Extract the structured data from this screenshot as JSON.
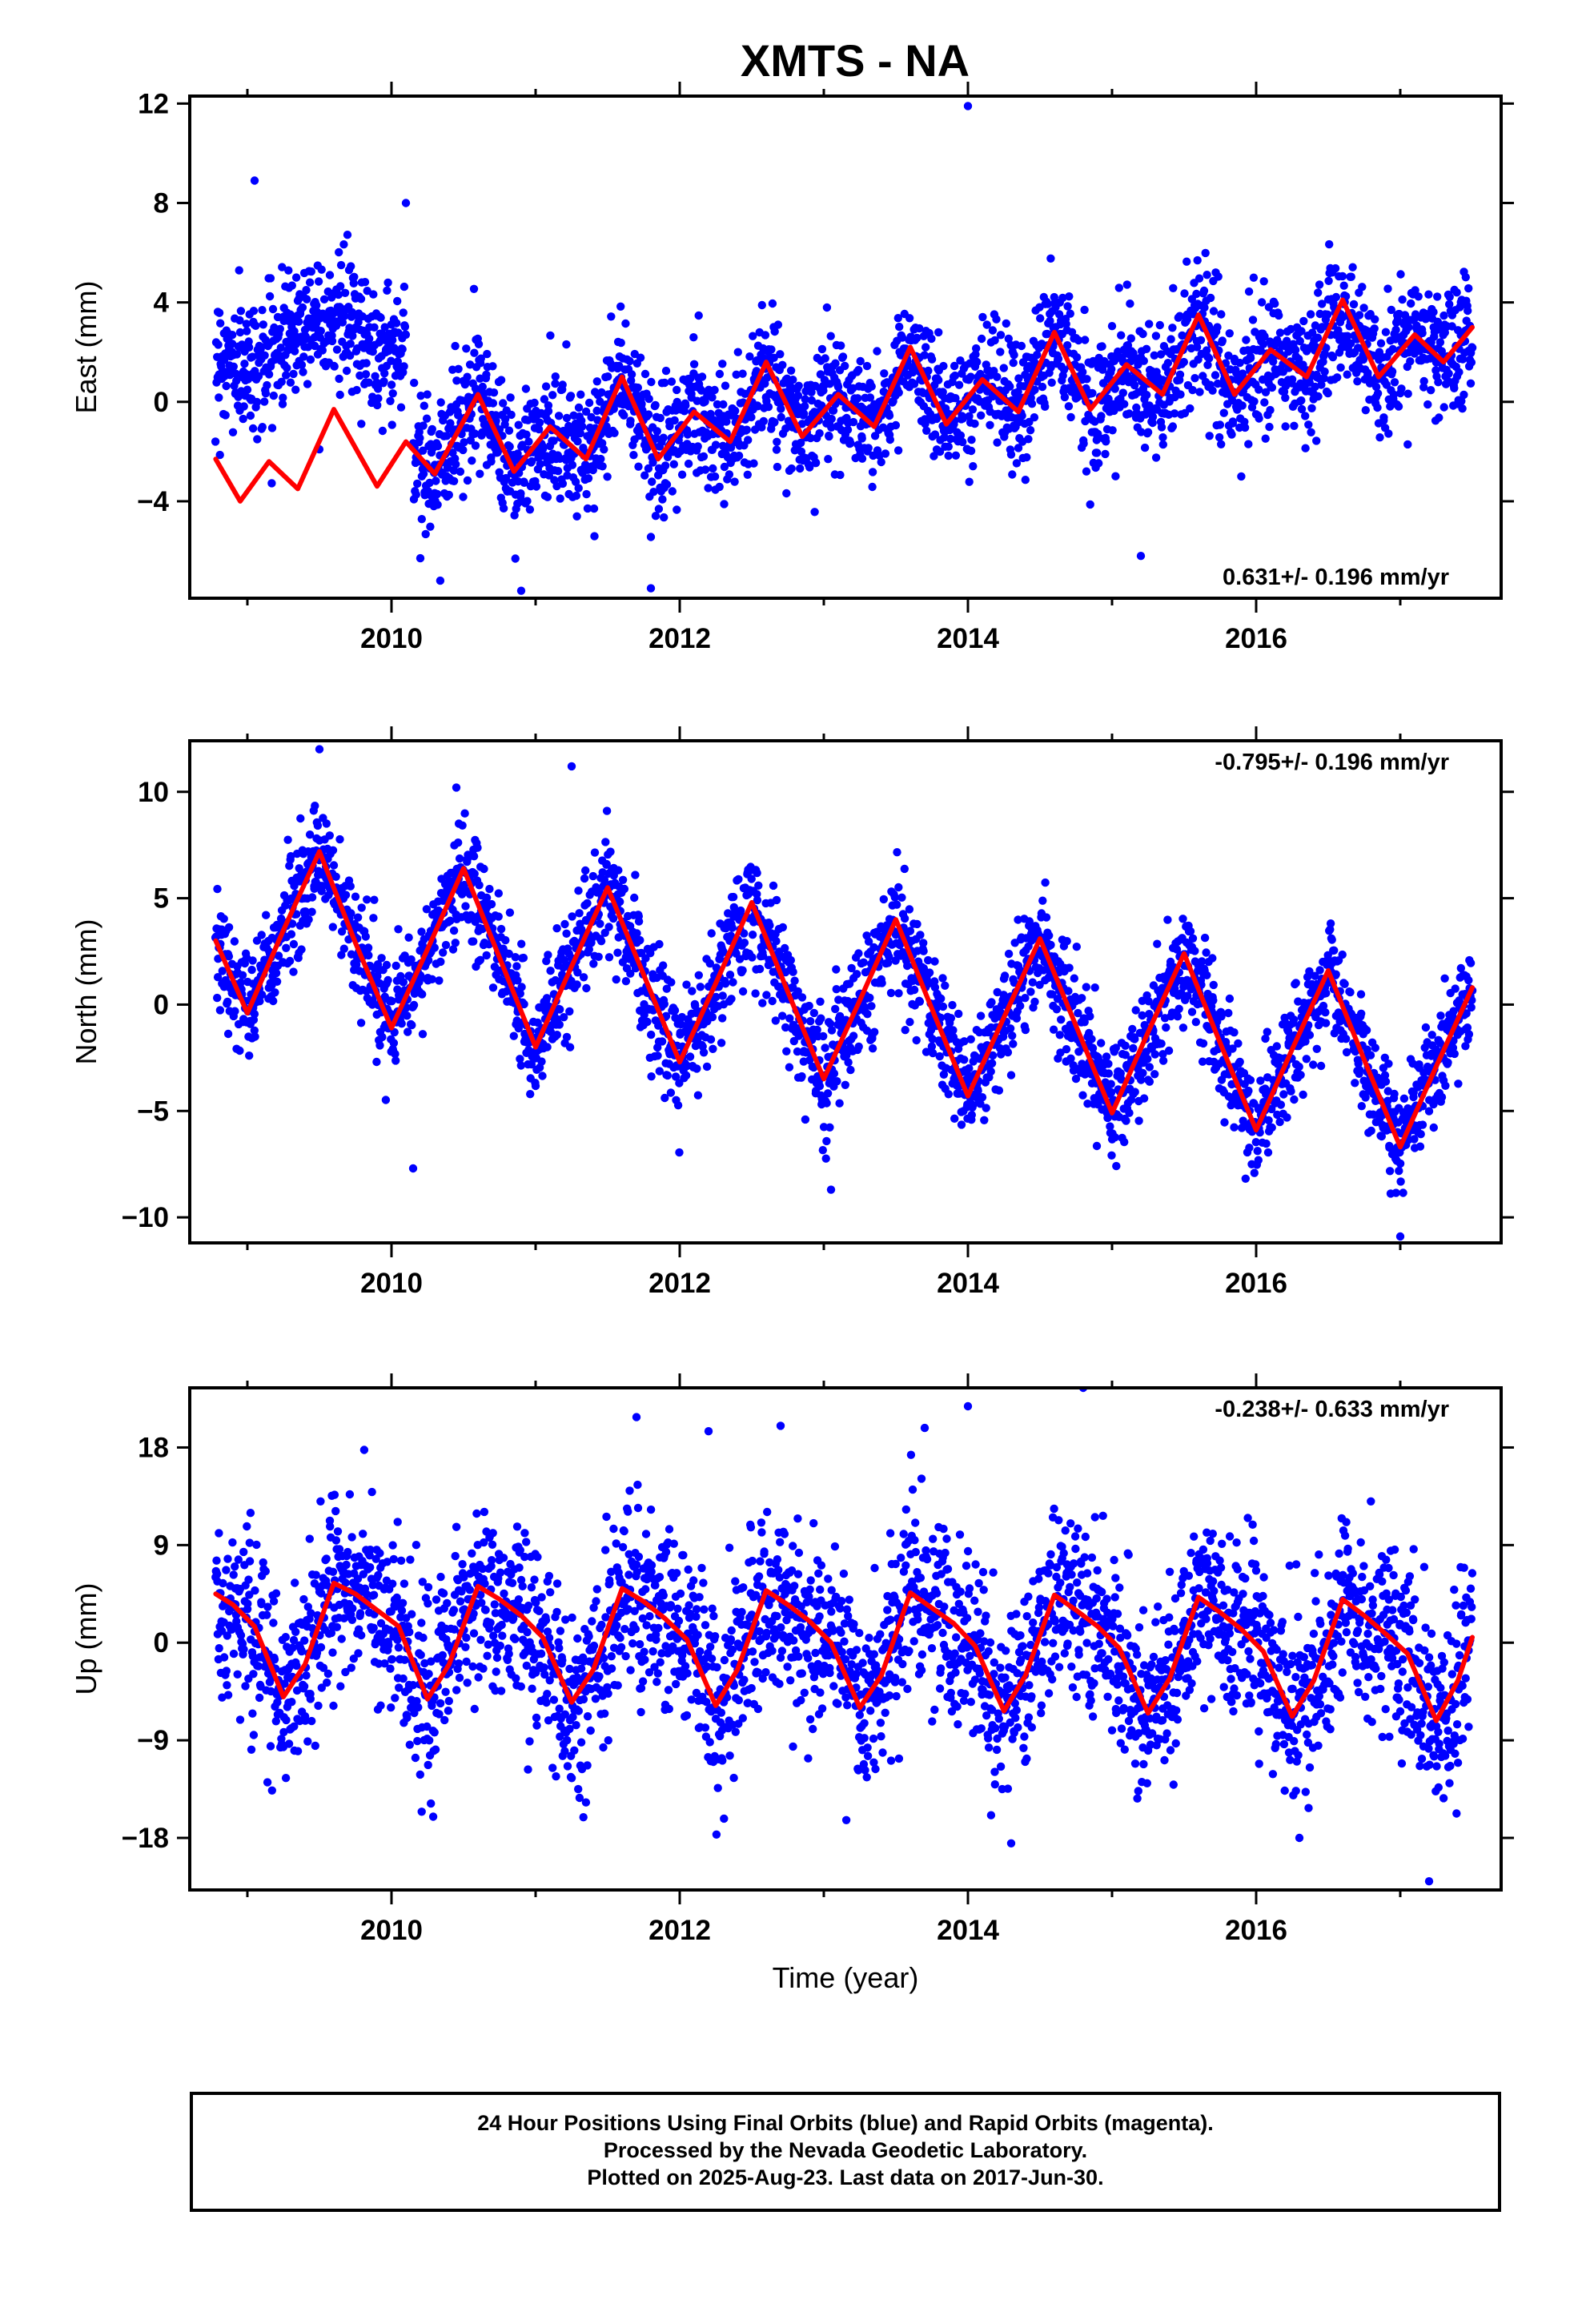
{
  "title": "XMTS - NA",
  "footer": {
    "line1": "24 Hour Positions Using Final Orbits (blue) and Rapid Orbits (magenta).",
    "line2": "Processed by the Nevada Geodetic Laboratory.",
    "line3": "Plotted on 2025-Aug-23. Last data on 2017-Jun-30."
  },
  "colors": {
    "points": "#0000ff",
    "model": "#ff0000",
    "axes": "#000000"
  },
  "chart_data": [
    {
      "type": "scatter",
      "ylabel": "East (mm)",
      "xlabel": "",
      "xlim": [
        2008.6,
        2017.7
      ],
      "ylim": [
        -7.9,
        12.3
      ],
      "xticks_major": [
        2010,
        2012,
        2014,
        2016
      ],
      "xtick_labels": [
        "2010",
        "2012",
        "2014",
        "2016"
      ],
      "xticks_minor": [
        2009,
        2011,
        2013,
        2015,
        2017
      ],
      "yticks": [
        -4,
        0,
        4,
        8,
        12
      ],
      "ytick_labels": [
        "−4",
        "0",
        "4",
        "8",
        "12"
      ],
      "annotation": "0.631+/- 0.196 mm/yr",
      "annotation_position": "bottom-right",
      "data_span": [
        2008.78,
        2017.5
      ],
      "series": [
        {
          "kind": "points",
          "color": "#0000ff",
          "approx_count": 2900,
          "segments": [
            {
              "x_range": [
                2008.78,
                2010.1
              ],
              "center": 2.6,
              "trend": 0.9,
              "amplitude": 0.9,
              "scatter": 1.3
            },
            {
              "x_range": [
                2010.15,
                2017.5
              ],
              "center_at_start": -2.2,
              "center_at_end": 2.4,
              "seasonal_amplitude": 1.3,
              "scatter": 1.3
            }
          ],
          "outliers": [
            [
              2009.05,
              8.9
            ],
            [
              2010.1,
              8.0
            ],
            [
              2014.0,
              11.9
            ],
            [
              2010.9,
              -7.6
            ],
            [
              2011.8,
              -7.5
            ],
            [
              2015.2,
              -6.2
            ]
          ]
        },
        {
          "kind": "line",
          "color": "#ff0000",
          "points": [
            [
              2008.78,
              -2.3
            ],
            [
              2008.95,
              -4.0
            ],
            [
              2009.15,
              -2.4
            ],
            [
              2009.35,
              -3.5
            ],
            [
              2009.6,
              -0.3
            ],
            [
              2009.9,
              -3.4
            ],
            [
              2010.1,
              -1.6
            ],
            [
              2010.3,
              -2.9
            ],
            [
              2010.6,
              0.3
            ],
            [
              2010.85,
              -2.8
            ],
            [
              2011.1,
              -1.0
            ],
            [
              2011.35,
              -2.3
            ],
            [
              2011.6,
              1.0
            ],
            [
              2011.85,
              -2.3
            ],
            [
              2012.1,
              -0.4
            ],
            [
              2012.35,
              -1.6
            ],
            [
              2012.6,
              1.6
            ],
            [
              2012.85,
              -1.4
            ],
            [
              2013.1,
              0.3
            ],
            [
              2013.35,
              -1.0
            ],
            [
              2013.6,
              2.2
            ],
            [
              2013.85,
              -0.9
            ],
            [
              2014.1,
              0.9
            ],
            [
              2014.35,
              -0.4
            ],
            [
              2014.6,
              2.8
            ],
            [
              2014.85,
              -0.3
            ],
            [
              2015.1,
              1.5
            ],
            [
              2015.35,
              0.3
            ],
            [
              2015.6,
              3.5
            ],
            [
              2015.85,
              0.3
            ],
            [
              2016.1,
              2.1
            ],
            [
              2016.35,
              1.0
            ],
            [
              2016.6,
              4.1
            ],
            [
              2016.85,
              1.0
            ],
            [
              2017.1,
              2.7
            ],
            [
              2017.3,
              1.6
            ],
            [
              2017.5,
              3.0
            ]
          ]
        }
      ]
    },
    {
      "type": "scatter",
      "ylabel": "North (mm)",
      "xlabel": "",
      "xlim": [
        2008.6,
        2017.7
      ],
      "ylim": [
        -11.2,
        12.4
      ],
      "xticks_major": [
        2010,
        2012,
        2014,
        2016
      ],
      "xtick_labels": [
        "2010",
        "2012",
        "2014",
        "2016"
      ],
      "xticks_minor": [
        2009,
        2011,
        2013,
        2015,
        2017
      ],
      "yticks": [
        -10,
        -5,
        0,
        5,
        10
      ],
      "ytick_labels": [
        "−10",
        "−5",
        "0",
        "5",
        "10"
      ],
      "annotation": "-0.795+/- 0.196 mm/yr",
      "annotation_position": "top-right",
      "data_span": [
        2008.78,
        2017.5
      ],
      "series": [
        {
          "kind": "points",
          "color": "#0000ff",
          "approx_count": 2900,
          "model": "trend + annual",
          "scatter": 1.3,
          "outliers": [
            [
              2009.5,
              12.0
            ],
            [
              2010.45,
              10.2
            ],
            [
              2011.25,
              11.2
            ],
            [
              2010.15,
              -7.7
            ],
            [
              2013.05,
              -8.7
            ],
            [
              2017.0,
              -10.9
            ]
          ]
        },
        {
          "kind": "line",
          "color": "#ff0000",
          "points": [
            [
              2008.78,
              3.0
            ],
            [
              2009.0,
              -0.4
            ],
            [
              2009.25,
              3.5
            ],
            [
              2009.5,
              7.2
            ],
            [
              2009.75,
              2.9
            ],
            [
              2010.0,
              -1.1
            ],
            [
              2010.25,
              2.6
            ],
            [
              2010.5,
              6.4
            ],
            [
              2010.75,
              2.2
            ],
            [
              2011.0,
              -2.0
            ],
            [
              2011.25,
              1.8
            ],
            [
              2011.5,
              5.5
            ],
            [
              2011.75,
              1.4
            ],
            [
              2012.0,
              -2.7
            ],
            [
              2012.25,
              1.0
            ],
            [
              2012.5,
              4.8
            ],
            [
              2012.75,
              0.6
            ],
            [
              2013.0,
              -3.5
            ],
            [
              2013.25,
              0.2
            ],
            [
              2013.5,
              4.0
            ],
            [
              2013.75,
              -0.2
            ],
            [
              2014.0,
              -4.3
            ],
            [
              2014.25,
              -0.6
            ],
            [
              2014.5,
              3.1
            ],
            [
              2014.75,
              -1.0
            ],
            [
              2015.0,
              -5.1
            ],
            [
              2015.25,
              -1.3
            ],
            [
              2015.5,
              2.4
            ],
            [
              2015.75,
              -1.8
            ],
            [
              2016.0,
              -5.9
            ],
            [
              2016.25,
              -2.1
            ],
            [
              2016.5,
              1.6
            ],
            [
              2016.75,
              -2.6
            ],
            [
              2017.0,
              -6.7
            ],
            [
              2017.25,
              -2.9
            ],
            [
              2017.5,
              0.8
            ]
          ]
        }
      ]
    },
    {
      "type": "scatter",
      "ylabel": "Up (mm)",
      "xlabel": "Time (year)",
      "xlim": [
        2008.6,
        2017.7
      ],
      "ylim": [
        -22.8,
        23.5
      ],
      "xticks_major": [
        2010,
        2012,
        2014,
        2016
      ],
      "xtick_labels": [
        "2010",
        "2012",
        "2014",
        "2016"
      ],
      "xticks_minor": [
        2009,
        2011,
        2013,
        2015,
        2017
      ],
      "yticks": [
        -18,
        -9,
        0,
        9,
        18
      ],
      "ytick_labels": [
        "−18",
        "−9",
        "0",
        "9",
        "18"
      ],
      "annotation": "-0.238+/- 0.633 mm/yr",
      "annotation_position": "top-right",
      "data_span": [
        2008.78,
        2017.5
      ],
      "series": [
        {
          "kind": "points",
          "color": "#0000ff",
          "approx_count": 2900,
          "model": "trend + annual + semiannual",
          "scatter": 4.2,
          "outliers": [
            [
              2014.8,
              23.5
            ],
            [
              2014.0,
              21.8
            ],
            [
              2011.7,
              20.8
            ],
            [
              2012.2,
              19.5
            ],
            [
              2012.7,
              20.0
            ],
            [
              2013.7,
              19.8
            ],
            [
              2017.2,
              -22.0
            ],
            [
              2014.3,
              -18.5
            ],
            [
              2016.3,
              -18.0
            ]
          ]
        },
        {
          "kind": "line",
          "color": "#ff0000",
          "points": [
            [
              2008.78,
              4.5
            ],
            [
              2008.9,
              3.5
            ],
            [
              2009.05,
              1.5
            ],
            [
              2009.25,
              -5.0
            ],
            [
              2009.4,
              -2.0
            ],
            [
              2009.6,
              5.5
            ],
            [
              2009.75,
              4.5
            ],
            [
              2009.9,
              3.0
            ],
            [
              2010.05,
              1.5
            ],
            [
              2010.25,
              -5.2
            ],
            [
              2010.4,
              -2.0
            ],
            [
              2010.6,
              5.2
            ],
            [
              2010.75,
              4.0
            ],
            [
              2010.9,
              2.5
            ],
            [
              2011.05,
              0.5
            ],
            [
              2011.25,
              -5.5
            ],
            [
              2011.4,
              -2.5
            ],
            [
              2011.6,
              5.0
            ],
            [
              2011.75,
              3.8
            ],
            [
              2011.9,
              2.2
            ],
            [
              2012.05,
              0.3
            ],
            [
              2012.25,
              -5.8
            ],
            [
              2012.4,
              -2.5
            ],
            [
              2012.6,
              4.8
            ],
            [
              2012.75,
              3.5
            ],
            [
              2012.9,
              2.0
            ],
            [
              2013.05,
              0.0
            ],
            [
              2013.25,
              -6.0
            ],
            [
              2013.4,
              -3.0
            ],
            [
              2013.6,
              4.6
            ],
            [
              2013.75,
              3.2
            ],
            [
              2013.9,
              1.8
            ],
            [
              2014.05,
              -0.3
            ],
            [
              2014.25,
              -6.3
            ],
            [
              2014.4,
              -3.0
            ],
            [
              2014.6,
              4.4
            ],
            [
              2014.75,
              3.0
            ],
            [
              2014.9,
              1.5
            ],
            [
              2015.05,
              -0.5
            ],
            [
              2015.25,
              -6.5
            ],
            [
              2015.4,
              -3.3
            ],
            [
              2015.6,
              4.2
            ],
            [
              2015.75,
              2.8
            ],
            [
              2015.9,
              1.2
            ],
            [
              2016.05,
              -0.8
            ],
            [
              2016.25,
              -6.8
            ],
            [
              2016.4,
              -3.5
            ],
            [
              2016.6,
              4.0
            ],
            [
              2016.75,
              2.5
            ],
            [
              2016.9,
              0.8
            ],
            [
              2017.05,
              -1.0
            ],
            [
              2017.25,
              -7.2
            ],
            [
              2017.4,
              -3.5
            ],
            [
              2017.5,
              0.5
            ]
          ]
        }
      ]
    }
  ]
}
